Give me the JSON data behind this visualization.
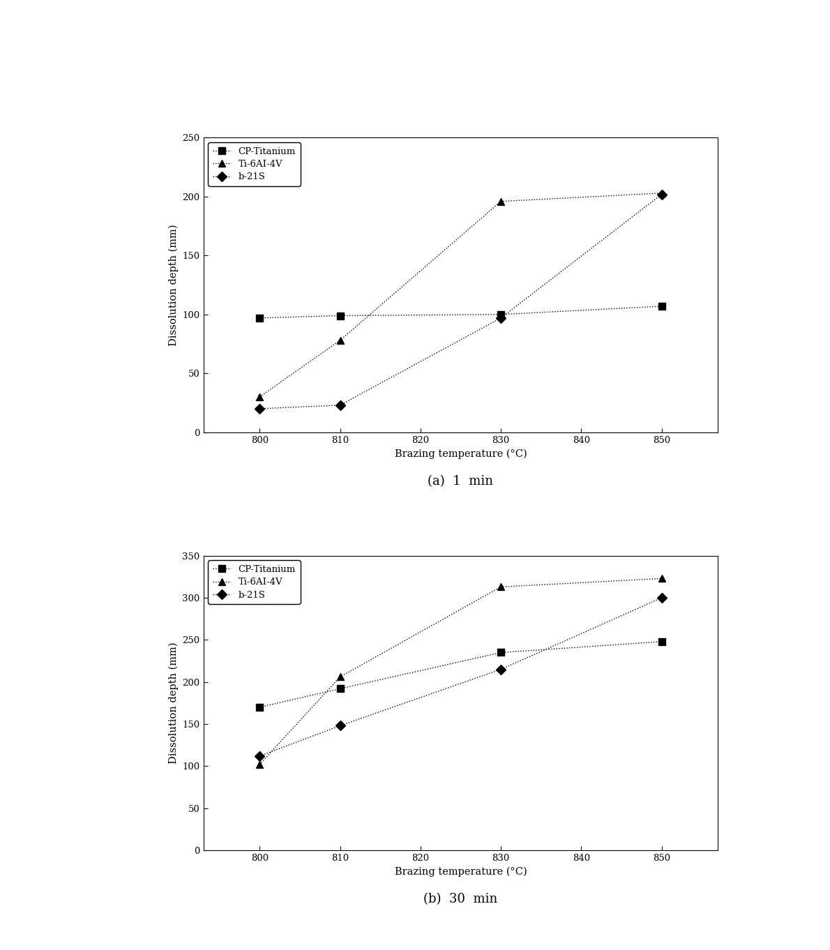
{
  "x": [
    800,
    810,
    830,
    850
  ],
  "plot_a": {
    "title": "(a)  1  min",
    "ylabel": "Dissolution depth (mm)",
    "xlabel": "Brazing temperature (°C)",
    "ylim": [
      0,
      250
    ],
    "yticks": [
      0,
      50,
      100,
      150,
      200,
      250
    ],
    "series": {
      "CP-Titanium": {
        "y": [
          97,
          99,
          100,
          107
        ],
        "marker": "s",
        "label": "CP-Titanium"
      },
      "Ti-6Al-4V": {
        "y": [
          30,
          78,
          196,
          203
        ],
        "marker": "^",
        "label": "Ti-6AI-4V"
      },
      "b-21S": {
        "y": [
          20,
          23,
          97,
          202
        ],
        "marker": "D",
        "label": "b-21S"
      }
    }
  },
  "plot_b": {
    "title": "(b)  30  min",
    "ylabel": "Dissolution depth (mm)",
    "xlabel": "Brazing temperature (°C)",
    "ylim": [
      0,
      350
    ],
    "yticks": [
      0,
      50,
      100,
      150,
      200,
      250,
      300,
      350
    ],
    "series": {
      "CP-Titanium": {
        "y": [
          170,
          192,
          235,
          248
        ],
        "marker": "s",
        "label": "CP-Titanium"
      },
      "Ti-6Al-4V": {
        "y": [
          102,
          206,
          313,
          323
        ],
        "marker": "^",
        "label": "Ti-6AI-4V"
      },
      "b-21S": {
        "y": [
          112,
          148,
          215,
          300
        ],
        "marker": "D",
        "label": "b-21S"
      }
    }
  },
  "color": "black",
  "linestyle": "dotted",
  "markersize": 7,
  "linewidth": 1.0,
  "legend_fontsize": 9.5,
  "axis_label_fontsize": 10.5,
  "tick_fontsize": 9.5,
  "caption_fontsize": 13,
  "xticks": [
    800,
    810,
    820,
    830,
    840,
    850
  ],
  "xlim": [
    793,
    857
  ]
}
